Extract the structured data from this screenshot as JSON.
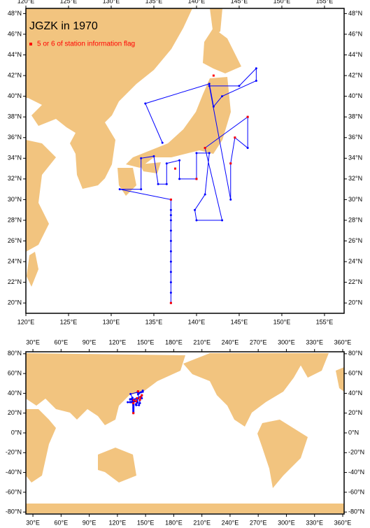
{
  "title": "JGZK in 1970",
  "legend": "5 or 6 of station information flag",
  "track_color": "#0000ff",
  "flag_color": "#ff0000",
  "land_color": "#f2c47f",
  "maps": [
    {
      "xlim": [
        120,
        157.3
      ],
      "ylim": [
        19,
        48.5
      ],
      "xticks": [
        {
          "value": 120,
          "label": "120°E"
        },
        {
          "value": 125,
          "label": "125°E"
        },
        {
          "value": 130,
          "label": "130°E"
        },
        {
          "value": 135,
          "label": "135°E"
        },
        {
          "value": 140,
          "label": "140°E"
        },
        {
          "value": 145,
          "label": "145°E"
        },
        {
          "value": 150,
          "label": "150°E"
        },
        {
          "value": 155,
          "label": "155°E"
        }
      ],
      "yticks": [
        {
          "value": 20,
          "label": "20°N"
        },
        {
          "value": 22,
          "label": "22°N"
        },
        {
          "value": 24,
          "label": "24°N"
        },
        {
          "value": 26,
          "label": "26°N"
        },
        {
          "value": 28,
          "label": "28°N"
        },
        {
          "value": 30,
          "label": "30°N"
        },
        {
          "value": 32,
          "label": "32°N"
        },
        {
          "value": 34,
          "label": "34°N"
        },
        {
          "value": 36,
          "label": "36°N"
        },
        {
          "value": 38,
          "label": "38°N"
        },
        {
          "value": 40,
          "label": "40°N"
        },
        {
          "value": 42,
          "label": "42°N"
        },
        {
          "value": 44,
          "label": "44°N"
        },
        {
          "value": 46,
          "label": "46°N"
        },
        {
          "value": 48,
          "label": "48°N"
        }
      ]
    },
    {
      "xlim": [
        22.5,
        361.5
      ],
      "ylim": [
        -82,
        82
      ],
      "xticks": [
        {
          "value": 30,
          "label": "30°E"
        },
        {
          "value": 60,
          "label": "60°E"
        },
        {
          "value": 90,
          "label": "90°E"
        },
        {
          "value": 120,
          "label": "120°E"
        },
        {
          "value": 150,
          "label": "150°E"
        },
        {
          "value": 180,
          "label": "180°E"
        },
        {
          "value": 210,
          "label": "210°E"
        },
        {
          "value": 240,
          "label": "240°E"
        },
        {
          "value": 270,
          "label": "270°E"
        },
        {
          "value": 300,
          "label": "300°E"
        },
        {
          "value": 330,
          "label": "330°E"
        },
        {
          "value": 360,
          "label": "360°E"
        }
      ],
      "yticks": [
        {
          "value": -80,
          "label": "-80°N"
        },
        {
          "value": -60,
          "label": "-60°N"
        },
        {
          "value": -40,
          "label": "-40°N"
        },
        {
          "value": -20,
          "label": "-20°N"
        },
        {
          "value": 0,
          "label": "0°N"
        },
        {
          "value": 20,
          "label": "20°N"
        },
        {
          "value": 40,
          "label": "40°N"
        },
        {
          "value": 60,
          "label": "60°N"
        },
        {
          "value": 80,
          "label": "80°N"
        }
      ]
    }
  ],
  "track": {
    "lon": [
      137,
      137,
      137,
      137,
      137,
      137,
      137,
      137,
      137,
      137,
      137,
      137,
      131,
      133.5,
      133.5,
      135,
      135.5,
      136.5,
      136.5,
      138,
      138,
      140,
      140,
      141.5,
      141,
      139.8,
      140,
      143,
      141,
      146,
      146,
      144.5,
      144,
      144,
      141.5,
      145,
      147,
      147,
      143,
      142,
      141.5,
      134,
      136
    ],
    "lat": [
      20,
      21,
      22,
      23,
      24,
      25,
      26,
      27,
      28,
      28.5,
      29,
      30,
      31,
      31,
      34,
      34.2,
      31.5,
      31.5,
      33.5,
      33.8,
      32,
      32,
      34.5,
      34.5,
      30.5,
      29,
      28,
      28,
      35,
      38,
      35,
      36,
      33.5,
      30,
      41,
      41,
      42.7,
      41.5,
      40,
      39,
      41.2,
      39.3,
      35.5
    ]
  },
  "flagged": {
    "lon": [
      137,
      137,
      137.5,
      140,
      144,
      144.5,
      146,
      142,
      141
    ],
    "lat": [
      30,
      20,
      33,
      32,
      33.5,
      36,
      38,
      42,
      35
    ]
  }
}
